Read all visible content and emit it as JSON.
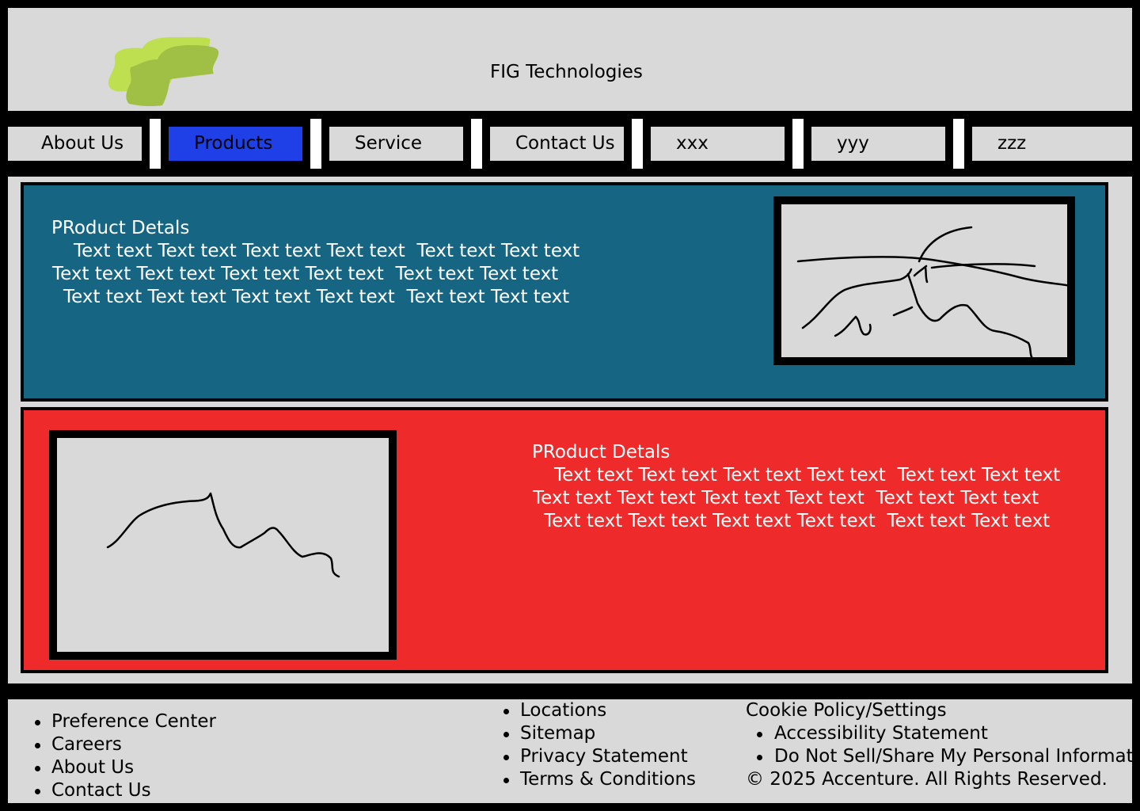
{
  "header": {
    "title": "FIG Technologies",
    "logo_icon": "green-puzzle-logo",
    "logo_colors": [
      "#bee050",
      "#a0bf45"
    ]
  },
  "nav": {
    "items": [
      {
        "label": "About Us",
        "active": false
      },
      {
        "label": "Products",
        "active": true
      },
      {
        "label": "Service",
        "active": false
      },
      {
        "label": "Contact Us",
        "active": false
      },
      {
        "label": "xxx",
        "active": false
      },
      {
        "label": "yyy",
        "active": false
      },
      {
        "label": "zzz",
        "active": false
      }
    ],
    "active_color": "#1e40e6"
  },
  "products": [
    {
      "title": "PRoduct Detals",
      "lines": [
        "Text text Text text Text text Text text  Text text Text text",
        "Text text Text text Text text Text text  Text text Text text",
        "Text text Text text Text text Text text  Text text Text text"
      ],
      "background": "#166683"
    },
    {
      "title": "PRoduct Detals",
      "lines": [
        "Text text Text text Text text Text text  Text text Text text",
        "Text text Text text Text text Text text  Text text Text text",
        "Text text Text text Text text Text text  Text text Text text"
      ],
      "background": "#ee2a2a"
    }
  ],
  "footer": {
    "col1": [
      "Preference Center",
      "Careers",
      "About Us",
      "Contact Us"
    ],
    "col2": [
      "Locations",
      "Sitemap",
      "Privacy Statement",
      "Terms & Conditions"
    ],
    "col3_heading": "Cookie Policy/Settings",
    "col3": [
      "Accessibility Statement",
      "Do Not Sell/Share My Personal Information"
    ],
    "copyright": "© 2025 Accenture. All Rights Reserved."
  }
}
